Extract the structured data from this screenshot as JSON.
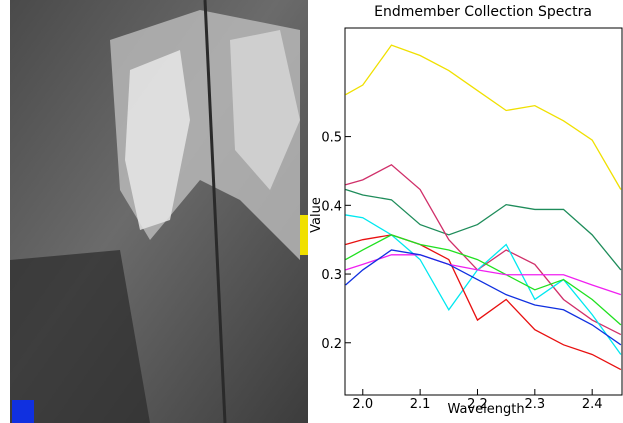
{
  "chart_data": {
    "type": "line",
    "title": "Endmember Collection Spectra",
    "x_label": "Wavelength",
    "y_label": "Value",
    "x": [
      1.97,
      2.0,
      2.05,
      2.1,
      2.15,
      2.2,
      2.25,
      2.3,
      2.35,
      2.4,
      2.45
    ],
    "xlim": [
      1.969,
      2.452
    ],
    "ylim": [
      0.124,
      0.658
    ],
    "xticks": [
      {
        "value": 2.0,
        "label": "2.0"
      },
      2.1,
      2.2,
      2.3,
      2.4
    ],
    "yticks": [
      0.2,
      0.3,
      0.4,
      0.5
    ],
    "series": [
      {
        "color": "#f0e000",
        "values": [
          0.561,
          0.575,
          0.633,
          0.618,
          0.596,
          0.567,
          0.538,
          0.545,
          0.523,
          0.495,
          0.423
        ]
      },
      {
        "color": "#1e8c5a",
        "values": [
          0.423,
          0.415,
          0.408,
          0.372,
          0.357,
          0.372,
          0.401,
          0.394,
          0.394,
          0.357,
          0.306
        ]
      },
      {
        "color": "#d0306a",
        "values": [
          0.43,
          0.437,
          0.459,
          0.423,
          0.35,
          0.306,
          0.335,
          0.314,
          0.263,
          0.233,
          0.212
        ]
      },
      {
        "color": "#00e8f0",
        "values": [
          0.386,
          0.382,
          0.357,
          0.321,
          0.248,
          0.306,
          0.343,
          0.263,
          0.292,
          0.241,
          0.183
        ]
      },
      {
        "color": "#e81010",
        "values": [
          0.343,
          0.35,
          0.357,
          0.343,
          0.321,
          0.233,
          0.263,
          0.219,
          0.197,
          0.183,
          0.161
        ]
      },
      {
        "color": "#20e020",
        "values": [
          0.321,
          0.335,
          0.357,
          0.343,
          0.335,
          0.321,
          0.299,
          0.277,
          0.292,
          0.263,
          0.226
        ]
      },
      {
        "color": "#f020f0",
        "values": [
          0.306,
          0.314,
          0.328,
          0.328,
          0.314,
          0.306,
          0.299,
          0.299,
          0.299,
          0.284,
          0.27
        ]
      },
      {
        "color": "#1030e0",
        "values": [
          0.284,
          0.306,
          0.335,
          0.328,
          0.314,
          0.292,
          0.27,
          0.255,
          0.248,
          0.226,
          0.197
        ]
      }
    ]
  }
}
